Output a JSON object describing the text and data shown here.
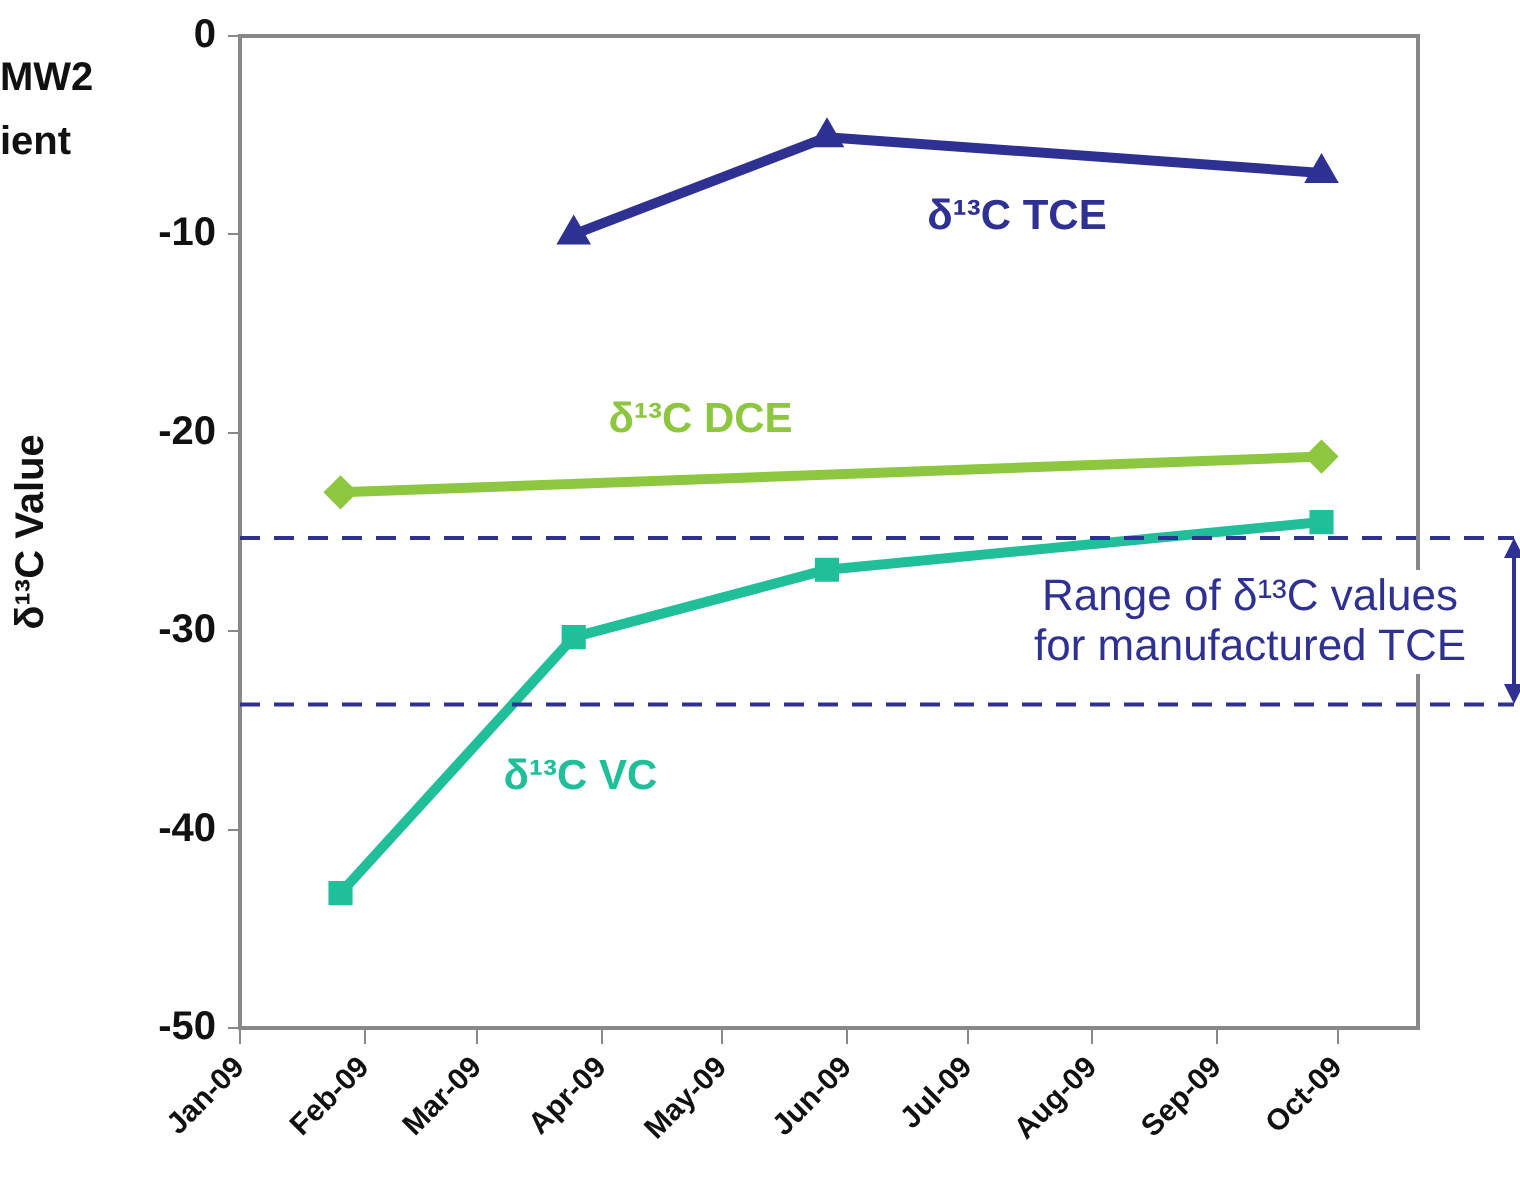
{
  "chart_data": {
    "type": "line",
    "ylabel": "δ¹³C Value",
    "annotations": [
      "MW2",
      "ient"
    ],
    "xlim": [
      "2009-01",
      "2009-10-21"
    ],
    "xticks": [
      {
        "value": "2009-01",
        "label": "Jan-09"
      },
      {
        "value": "2009-02",
        "label": "Feb-09"
      },
      {
        "value": "2009-03",
        "label": "Mar-09"
      },
      {
        "value": "2009-04",
        "label": "Apr-09"
      },
      {
        "value": "2009-05",
        "label": "May-09"
      },
      {
        "value": "2009-06",
        "label": "Jun-09"
      },
      {
        "value": "2009-07",
        "label": "Jul-09"
      },
      {
        "value": "2009-08",
        "label": "Aug-09"
      },
      {
        "value": "2009-09",
        "label": "Sep-09"
      },
      {
        "value": "2009-10",
        "label": "Oct-09"
      }
    ],
    "ylim": [
      -50,
      0
    ],
    "yticks": [
      -50,
      -40,
      -30,
      -20,
      -10,
      0
    ],
    "series": [
      {
        "name": "δ¹³C TCE",
        "color": "#2e3192",
        "marker": "triangle",
        "x": [
          "2009-03-25",
          "2009-05-27",
          "2009-09-27"
        ],
        "values": [
          -10,
          -5.1,
          -6.9
        ]
      },
      {
        "name": "δ¹³C DCE",
        "color": "#8dc63f",
        "marker": "diamond",
        "x": [
          "2009-01-26",
          "2009-09-27"
        ],
        "values": [
          -23,
          -21.2
        ]
      },
      {
        "name": "δ¹³C VC",
        "color": "#20bf9a",
        "marker": "square",
        "x": [
          "2009-01-26",
          "2009-03-25",
          "2009-05-27",
          "2009-09-27"
        ],
        "values": [
          -43.2,
          -30.3,
          -26.9,
          -24.5
        ]
      }
    ],
    "ref_lines": [
      {
        "axis": "y",
        "value": -25.3,
        "label": "Range of δ¹³C values for manufactured TCE",
        "color": "#2e3192",
        "line_style": "dashed"
      },
      {
        "axis": "y",
        "value": -33.7,
        "color": "#2e3192",
        "line_style": "dashed"
      }
    ],
    "grid": false,
    "legend": false
  }
}
